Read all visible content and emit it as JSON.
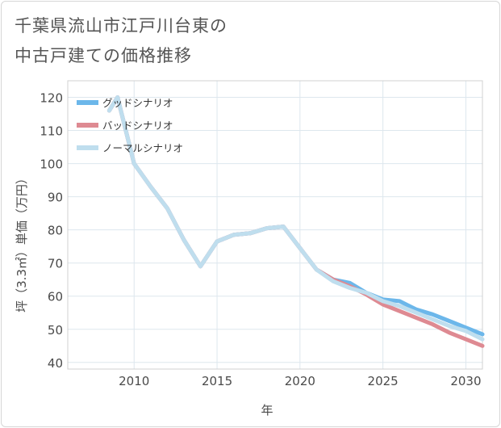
{
  "title_lines": [
    "千葉県流山市江戸川台東の",
    "中古戸建ての価格推移"
  ],
  "chart_data": {
    "type": "line",
    "title": "千葉県流山市江戸川台東の中古戸建ての価格推移",
    "xlabel": "年",
    "ylabel": "坪（3.3㎡）単価（万円）",
    "xlim": [
      2006,
      2031
    ],
    "ylim": [
      38,
      125
    ],
    "xticks": [
      2010,
      2015,
      2020,
      2025,
      2030
    ],
    "yticks": [
      40,
      50,
      60,
      70,
      80,
      90,
      100,
      110,
      120
    ],
    "grid": true,
    "legend_position": "top-left",
    "series": [
      {
        "name": "グッドシナリオ",
        "color": "#6cb7ea",
        "points": [
          [
            2008.5,
            116
          ],
          [
            2009,
            120
          ],
          [
            2010,
            100
          ],
          [
            2011,
            93
          ],
          [
            2012,
            86.5
          ],
          [
            2013,
            77
          ],
          [
            2014,
            69
          ],
          [
            2015,
            76.5
          ],
          [
            2016,
            78.5
          ],
          [
            2017,
            79
          ],
          [
            2018,
            80.5
          ],
          [
            2019,
            81
          ],
          [
            2020,
            74.5
          ],
          [
            2021,
            68
          ],
          [
            2022,
            65
          ],
          [
            2023,
            64
          ],
          [
            2024,
            61
          ],
          [
            2025,
            59
          ],
          [
            2026,
            58.5
          ],
          [
            2027,
            56
          ],
          [
            2028,
            54.5
          ],
          [
            2029,
            52.5
          ],
          [
            2030,
            50.5
          ],
          [
            2031,
            48.5
          ]
        ]
      },
      {
        "name": "バッドシナリオ",
        "color": "#de8a92",
        "points": [
          [
            2008.5,
            116
          ],
          [
            2009,
            120
          ],
          [
            2010,
            100
          ],
          [
            2011,
            93
          ],
          [
            2012,
            86.5
          ],
          [
            2013,
            77
          ],
          [
            2014,
            69
          ],
          [
            2015,
            76.5
          ],
          [
            2016,
            78.5
          ],
          [
            2017,
            79
          ],
          [
            2018,
            80.5
          ],
          [
            2019,
            81
          ],
          [
            2020,
            74.5
          ],
          [
            2021,
            68
          ],
          [
            2022,
            65
          ],
          [
            2023,
            63
          ],
          [
            2024,
            60.5
          ],
          [
            2025,
            57.5
          ],
          [
            2026,
            55.5
          ],
          [
            2027,
            53.5
          ],
          [
            2028,
            51.5
          ],
          [
            2029,
            49
          ],
          [
            2030,
            47
          ],
          [
            2031,
            45
          ]
        ]
      },
      {
        "name": "ノーマルシナリオ",
        "color": "#bfdeee",
        "points": [
          [
            2008.5,
            116
          ],
          [
            2009,
            120
          ],
          [
            2010,
            100
          ],
          [
            2011,
            93
          ],
          [
            2012,
            86.5
          ],
          [
            2013,
            77
          ],
          [
            2014,
            69
          ],
          [
            2015,
            76.5
          ],
          [
            2016,
            78.5
          ],
          [
            2017,
            79
          ],
          [
            2018,
            80.5
          ],
          [
            2019,
            81
          ],
          [
            2020,
            74.5
          ],
          [
            2021,
            68
          ],
          [
            2022,
            64.5
          ],
          [
            2023,
            62.5
          ],
          [
            2024,
            61
          ],
          [
            2025,
            58.5
          ],
          [
            2026,
            57
          ],
          [
            2027,
            55
          ],
          [
            2028,
            53
          ],
          [
            2029,
            51
          ],
          [
            2030,
            49.5
          ],
          [
            2031,
            47
          ]
        ]
      }
    ]
  }
}
